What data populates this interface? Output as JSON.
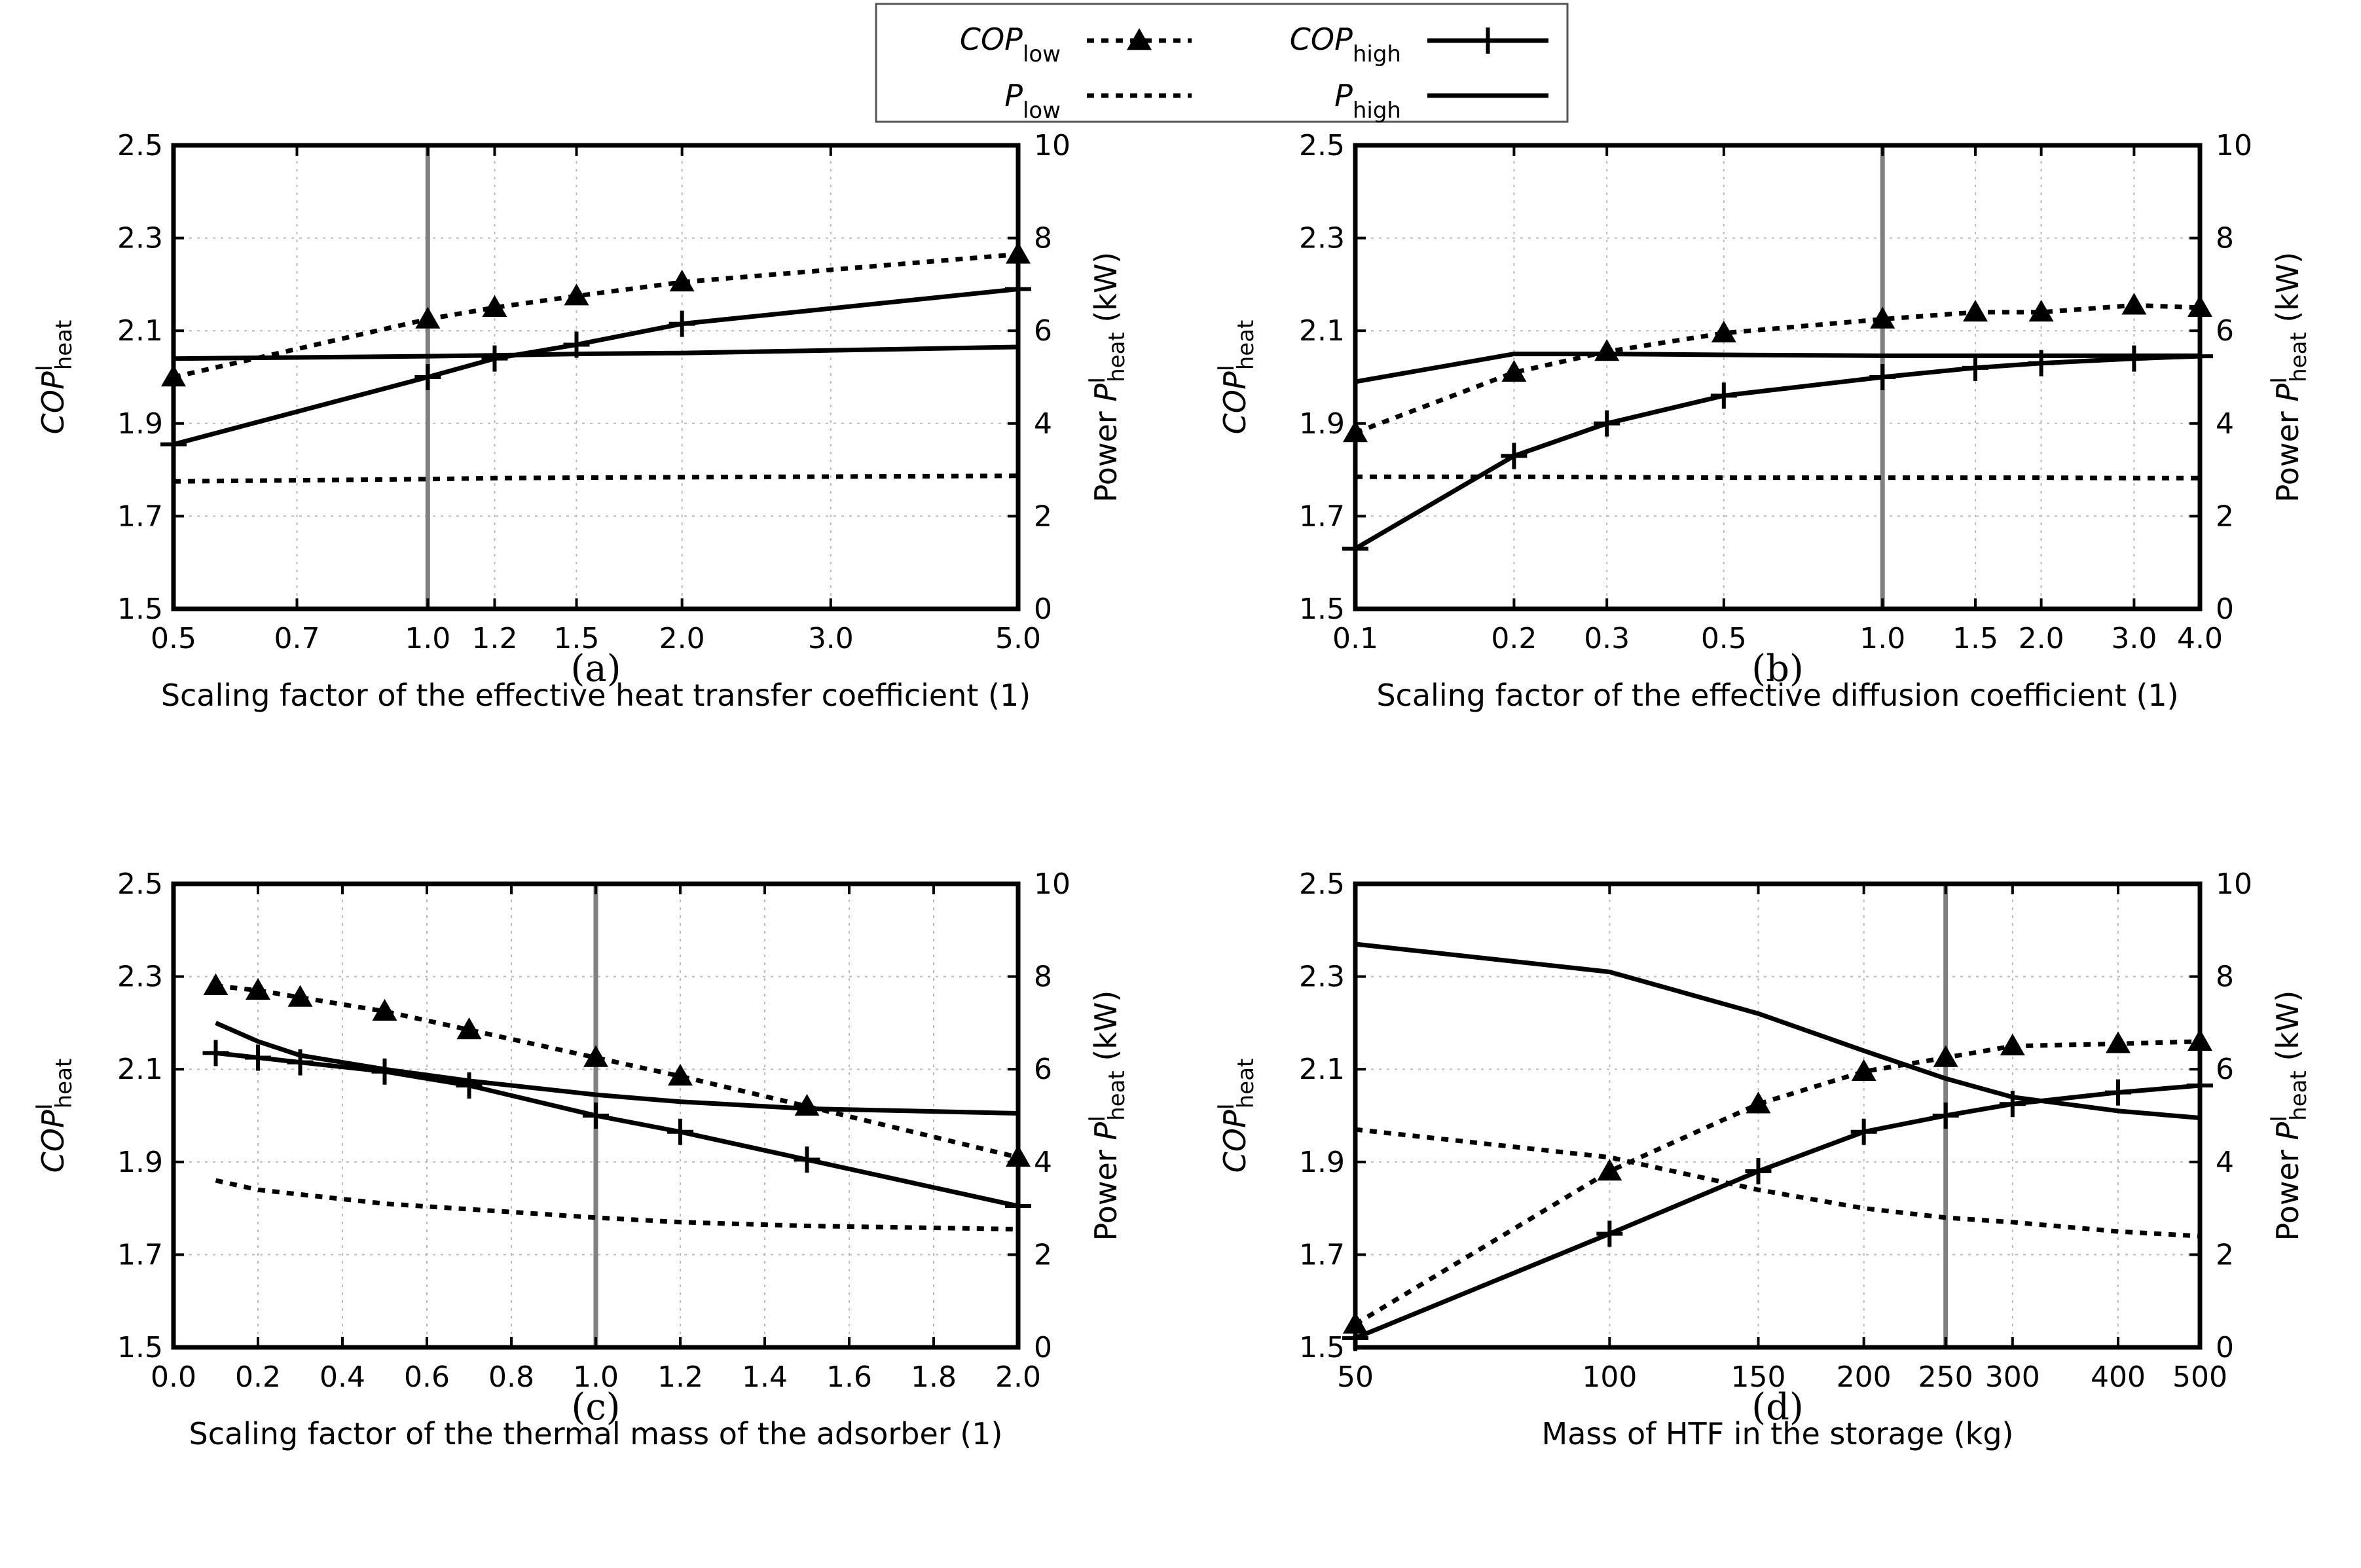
{
  "legend": {
    "items": [
      {
        "main": "COP",
        "sub": "low",
        "style": "dotted",
        "marker": "triangle"
      },
      {
        "main": "COP",
        "sub": "high",
        "style": "solid",
        "marker": "plus"
      },
      {
        "main": "P",
        "sub": "low",
        "style": "dotted",
        "marker": "none"
      },
      {
        "main": "P",
        "sub": "high",
        "style": "solid",
        "marker": "none"
      }
    ]
  },
  "colors": {
    "series": "#000000",
    "reference_line": "#808080",
    "grid": "#bbbbbb"
  },
  "chart_data": [
    {
      "type": "line",
      "panel": "(a)",
      "xscale": "log",
      "xlabel": "Scaling factor of the effective heat transfer coefficient (1)",
      "xlim": [
        0.5,
        5.0
      ],
      "xticks": [
        0.5,
        0.7,
        1.0,
        1.2,
        1.5,
        2.0,
        3.0,
        5.0
      ],
      "xtick_labels": [
        "0.5",
        "0.7",
        "1.0",
        "1.2",
        "1.5",
        "2.0",
        "3.0",
        "5.0"
      ],
      "ylabel": {
        "main": "COP",
        "sup": "I",
        "sub": "heat"
      },
      "ylim": [
        1.5,
        2.5
      ],
      "yticks": [
        1.5,
        1.7,
        1.9,
        2.1,
        2.3,
        2.5
      ],
      "ytick_labels": [
        "1.5",
        "1.7",
        "1.9",
        "2.1",
        "2.3",
        "2.5"
      ],
      "y2label": {
        "pre": "Power ",
        "main": "P",
        "sup": "I",
        "sub": "heat",
        "post": " (kW)"
      },
      "y2lim": [
        0,
        10
      ],
      "y2ticks": [
        0,
        2,
        4,
        6,
        8,
        10
      ],
      "y2tick_labels": [
        "0",
        "2",
        "4",
        "6",
        "8",
        "10"
      ],
      "reference_x": 1.0,
      "series": [
        {
          "name": "COP_low",
          "axis": "left",
          "x": [
            0.5,
            1.0,
            1.2,
            1.5,
            2.0,
            5.0
          ],
          "values": [
            2.0,
            2.125,
            2.15,
            2.175,
            2.205,
            2.265
          ]
        },
        {
          "name": "COP_high",
          "axis": "left",
          "x": [
            0.5,
            1.0,
            1.2,
            1.5,
            2.0,
            5.0
          ],
          "values": [
            1.855,
            2.0,
            2.04,
            2.07,
            2.115,
            2.19
          ]
        },
        {
          "name": "P_low",
          "axis": "right",
          "x": [
            0.5,
            1.0,
            1.2,
            1.5,
            2.0,
            5.0
          ],
          "values": [
            2.75,
            2.8,
            2.82,
            2.83,
            2.84,
            2.87
          ]
        },
        {
          "name": "P_high",
          "axis": "right",
          "x": [
            0.5,
            1.0,
            1.2,
            1.5,
            2.0,
            5.0
          ],
          "values": [
            5.4,
            5.45,
            5.47,
            5.5,
            5.52,
            5.65
          ]
        }
      ]
    },
    {
      "type": "line",
      "panel": "(b)",
      "xscale": "log",
      "xlabel": "Scaling factor of the effective diffusion coefficient (1)",
      "xlim": [
        0.1,
        4.0
      ],
      "xticks": [
        0.1,
        0.2,
        0.3,
        0.5,
        1.0,
        1.5,
        2.0,
        3.0,
        4.0
      ],
      "xtick_labels": [
        "0.1",
        "0.2",
        "0.3",
        "0.5",
        "1.0",
        "1.5",
        "2.0",
        "3.0",
        "4.0"
      ],
      "ylabel": {
        "main": "COP",
        "sup": "I",
        "sub": "heat"
      },
      "ylim": [
        1.5,
        2.5
      ],
      "yticks": [
        1.5,
        1.7,
        1.9,
        2.1,
        2.3,
        2.5
      ],
      "ytick_labels": [
        "1.5",
        "1.7",
        "1.9",
        "2.1",
        "2.3",
        "2.5"
      ],
      "y2label": {
        "pre": "Power ",
        "main": "P",
        "sup": "I",
        "sub": "heat",
        "post": " (kW)"
      },
      "y2lim": [
        0,
        10
      ],
      "y2ticks": [
        0,
        2,
        4,
        6,
        8,
        10
      ],
      "y2tick_labels": [
        "0",
        "2",
        "4",
        "6",
        "8",
        "10"
      ],
      "reference_x": 1.0,
      "series": [
        {
          "name": "COP_low",
          "axis": "left",
          "x": [
            0.1,
            0.2,
            0.3,
            0.5,
            1.0,
            1.5,
            2.0,
            3.0,
            4.0
          ],
          "values": [
            1.88,
            2.01,
            2.055,
            2.095,
            2.125,
            2.14,
            2.14,
            2.155,
            2.15
          ]
        },
        {
          "name": "COP_high",
          "axis": "left",
          "x": [
            0.1,
            0.2,
            0.3,
            0.5,
            1.0,
            1.5,
            2.0,
            3.0,
            4.0
          ],
          "values": [
            1.63,
            1.83,
            1.9,
            1.96,
            2.0,
            2.02,
            2.03,
            2.04,
            2.045
          ]
        },
        {
          "name": "P_low",
          "axis": "right",
          "x": [
            0.1,
            0.2,
            0.3,
            0.5,
            1.0,
            1.5,
            2.0,
            3.0,
            4.0
          ],
          "values": [
            2.85,
            2.85,
            2.84,
            2.83,
            2.83,
            2.83,
            2.83,
            2.82,
            2.82
          ]
        },
        {
          "name": "P_high",
          "axis": "right",
          "x": [
            0.1,
            0.2,
            0.3,
            0.5,
            1.0,
            1.5,
            2.0,
            3.0,
            4.0
          ],
          "values": [
            4.9,
            5.5,
            5.5,
            5.48,
            5.46,
            5.46,
            5.46,
            5.46,
            5.46
          ]
        }
      ]
    },
    {
      "type": "line",
      "panel": "(c)",
      "xscale": "linear",
      "xlabel": "Scaling factor of the thermal mass of the adsorber (1)",
      "xlim": [
        0.0,
        2.0
      ],
      "xticks": [
        0.0,
        0.2,
        0.4,
        0.6,
        0.8,
        1.0,
        1.2,
        1.4,
        1.6,
        1.8,
        2.0
      ],
      "xtick_labels": [
        "0.0",
        "0.2",
        "0.4",
        "0.6",
        "0.8",
        "1.0",
        "1.2",
        "1.4",
        "1.6",
        "1.8",
        "2.0"
      ],
      "ylabel": {
        "main": "COP",
        "sup": "I",
        "sub": "heat"
      },
      "ylim": [
        1.5,
        2.5
      ],
      "yticks": [
        1.5,
        1.7,
        1.9,
        2.1,
        2.3,
        2.5
      ],
      "ytick_labels": [
        "1.5",
        "1.7",
        "1.9",
        "2.1",
        "2.3",
        "2.5"
      ],
      "y2label": {
        "pre": "Power ",
        "main": "P",
        "sup": "I",
        "sub": "heat",
        "post": " (kW)"
      },
      "y2lim": [
        0,
        10
      ],
      "y2ticks": [
        0,
        2,
        4,
        6,
        8,
        10
      ],
      "y2tick_labels": [
        "0",
        "2",
        "4",
        "6",
        "8",
        "10"
      ],
      "reference_x": 1.0,
      "series": [
        {
          "name": "COP_low",
          "axis": "left",
          "x": [
            0.1,
            0.2,
            0.3,
            0.5,
            0.7,
            1.0,
            1.2,
            1.5,
            2.0
          ],
          "values": [
            2.28,
            2.27,
            2.255,
            2.225,
            2.185,
            2.125,
            2.085,
            2.02,
            1.91
          ]
        },
        {
          "name": "COP_high",
          "axis": "left",
          "x": [
            0.1,
            0.2,
            0.3,
            0.5,
            0.7,
            1.0,
            1.2,
            1.5,
            2.0
          ],
          "values": [
            2.135,
            2.125,
            2.115,
            2.095,
            2.065,
            2.0,
            1.965,
            1.905,
            1.805
          ]
        },
        {
          "name": "P_low",
          "axis": "right",
          "x": [
            0.1,
            0.2,
            0.3,
            0.5,
            0.7,
            1.0,
            1.2,
            1.5,
            2.0
          ],
          "values": [
            3.6,
            3.4,
            3.3,
            3.1,
            2.98,
            2.8,
            2.7,
            2.62,
            2.55
          ]
        },
        {
          "name": "P_high",
          "axis": "right",
          "x": [
            0.1,
            0.2,
            0.3,
            0.5,
            0.7,
            1.0,
            1.2,
            1.5,
            2.0
          ],
          "values": [
            7.0,
            6.6,
            6.3,
            6.0,
            5.75,
            5.45,
            5.3,
            5.15,
            5.05
          ]
        }
      ]
    },
    {
      "type": "line",
      "panel": "(d)",
      "xscale": "log",
      "xlabel": "Mass of HTF in the storage (kg)",
      "xlim": [
        50,
        500
      ],
      "xticks": [
        50,
        100,
        150,
        200,
        250,
        300,
        400,
        500
      ],
      "xtick_labels": [
        "50",
        "100",
        "150",
        "200",
        "250",
        "300",
        "400",
        "500"
      ],
      "ylabel": {
        "main": "COP",
        "sup": "I",
        "sub": "heat"
      },
      "ylim": [
        1.5,
        2.5
      ],
      "yticks": [
        1.5,
        1.7,
        1.9,
        2.1,
        2.3,
        2.5
      ],
      "ytick_labels": [
        "1.5",
        "1.7",
        "1.9",
        "2.1",
        "2.3",
        "2.5"
      ],
      "y2label": {
        "pre": "Power ",
        "main": "P",
        "sup": "I",
        "sub": "heat",
        "post": " (kW)"
      },
      "y2lim": [
        0,
        10
      ],
      "y2ticks": [
        0,
        2,
        4,
        6,
        8,
        10
      ],
      "y2tick_labels": [
        "0",
        "2",
        "4",
        "6",
        "8",
        "10"
      ],
      "reference_x": 250,
      "series": [
        {
          "name": "COP_low",
          "axis": "left",
          "x": [
            50,
            100,
            150,
            200,
            250,
            300,
            400,
            500
          ],
          "values": [
            1.55,
            1.88,
            2.025,
            2.095,
            2.125,
            2.15,
            2.155,
            2.16
          ]
        },
        {
          "name": "COP_high",
          "axis": "left",
          "x": [
            50,
            100,
            150,
            200,
            250,
            300,
            400,
            500
          ],
          "values": [
            1.52,
            1.745,
            1.88,
            1.965,
            2.0,
            2.025,
            2.05,
            2.065
          ]
        },
        {
          "name": "P_low",
          "axis": "right",
          "x": [
            50,
            100,
            150,
            200,
            250,
            300,
            400,
            500
          ],
          "values": [
            4.7,
            4.1,
            3.4,
            3.0,
            2.8,
            2.7,
            2.5,
            2.4
          ]
        },
        {
          "name": "P_high",
          "axis": "right",
          "x": [
            50,
            100,
            150,
            200,
            250,
            300,
            400,
            500
          ],
          "values": [
            8.7,
            8.1,
            7.2,
            6.4,
            5.8,
            5.4,
            5.1,
            4.95
          ]
        }
      ]
    }
  ]
}
